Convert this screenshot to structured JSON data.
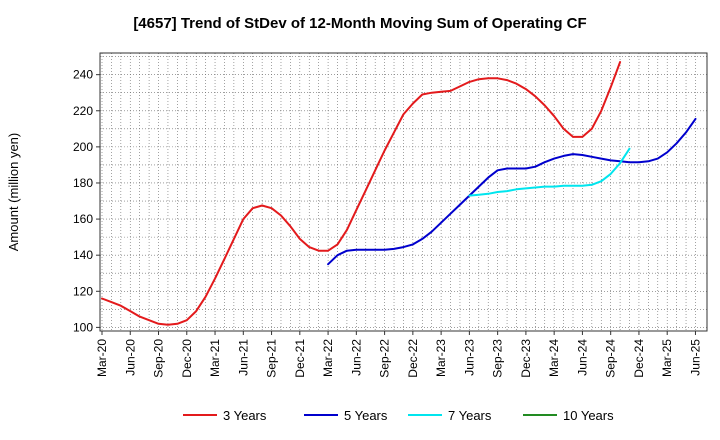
{
  "chart_data": {
    "type": "line",
    "title": "[4657]  Trend of StDev of 12-Month Moving Sum of Operating CF",
    "xlabel": "",
    "ylabel": "Amount (million yen)",
    "ylim": [
      98,
      252
    ],
    "yticks": [
      100,
      120,
      140,
      160,
      180,
      200,
      220,
      240
    ],
    "x_tick_labels": [
      "Mar-20",
      "Jun-20",
      "Sep-20",
      "Dec-20",
      "Mar-21",
      "Jun-21",
      "Sep-21",
      "Dec-21",
      "Mar-22",
      "Jun-22",
      "Sep-22",
      "Dec-22",
      "Mar-23",
      "Jun-23",
      "Sep-23",
      "Dec-23",
      "Mar-24",
      "Jun-24",
      "Sep-24",
      "Dec-24",
      "Mar-25",
      "Jun-25"
    ],
    "grid": true,
    "legend_position": "bottom",
    "series": [
      {
        "name": "3 Years",
        "color": "#e31a1c",
        "start_index": 0,
        "values": [
          116,
          114,
          112,
          109,
          106,
          104,
          102,
          101.5,
          102,
          104,
          109,
          117,
          127,
          138,
          149,
          160,
          166,
          167.5,
          166,
          162,
          156,
          149,
          144.5,
          142.5,
          142.5,
          146,
          154,
          165,
          176,
          187,
          198,
          208,
          218,
          224,
          229,
          230,
          230.5,
          231,
          233.5,
          236,
          237.5,
          238,
          238,
          237,
          235,
          232,
          228,
          223,
          217,
          210,
          205.5,
          205.5,
          210,
          220,
          233,
          247
        ]
      },
      {
        "name": "5 Years",
        "color": "#0000cd",
        "start_index": 24,
        "values": [
          135,
          140,
          142.5,
          143,
          143,
          143,
          143,
          143.5,
          144.5,
          146,
          149,
          153,
          158,
          163,
          168,
          173,
          178,
          183,
          187,
          188,
          188,
          188,
          189,
          191.5,
          193.5,
          195,
          196,
          195.5,
          194.5,
          193.5,
          192.5,
          192,
          191.5,
          191.5,
          192,
          193.5,
          197,
          202,
          208,
          215.5
        ]
      },
      {
        "name": "7 Years",
        "color": "#00e5ee",
        "start_index": 39,
        "values": [
          173,
          173.5,
          174,
          175,
          175.5,
          176.5,
          177,
          177.5,
          178,
          178,
          178.5,
          178.5,
          178.5,
          179,
          181,
          185,
          191,
          199
        ]
      },
      {
        "name": "10 Years",
        "color": "#228b22",
        "start_index": 0,
        "values": []
      }
    ]
  }
}
